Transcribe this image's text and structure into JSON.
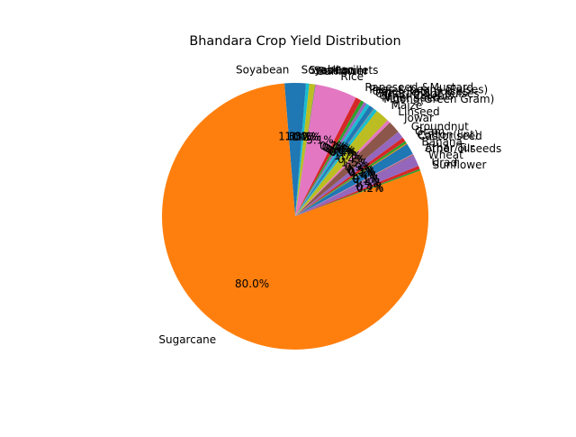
{
  "chart_data": {
    "type": "pie",
    "title": "Bhandara Crop Yield Distribution",
    "start_angle_deg": 90,
    "direction": "counterclockwise",
    "slices": [
      {
        "label": "Soyabean",
        "value": 1.3,
        "pct_label": "1.3%",
        "color": "#1f77b4"
      },
      {
        "label": "Sugarcane",
        "value": 80.0,
        "pct_label": "80.0%",
        "color": "#ff7f0e"
      },
      {
        "label": "Sunflower",
        "value": 0.2,
        "pct_label": "0.2%",
        "color": "#2ca02c"
      },
      {
        "label": "Urad",
        "value": 0.4,
        "pct_label": "0.4%",
        "color": "#d62728"
      },
      {
        "label": "Wheat",
        "value": 1.4,
        "pct_label": "1.4%",
        "color": "#9467bd"
      },
      {
        "label": "other oilseeds",
        "value": 0.1,
        "pct_label": "0.1%",
        "color": "#8c564b"
      },
      {
        "label": "Arhar/Tur",
        "value": 0.1,
        "pct_label": "0.1%",
        "color": "#e377c2"
      },
      {
        "label": "Banana",
        "value": 1.4,
        "pct_label": "1.4%",
        "color": "#1f77b4"
      },
      {
        "label": "Castor seed",
        "value": 0.1,
        "pct_label": "0.1%",
        "color": "#ff7f0e"
      },
      {
        "label": "Cotton(lint)",
        "value": 0.3,
        "pct_label": "0.3%",
        "color": "#2ca02c"
      },
      {
        "label": "Gram",
        "value": 0.5,
        "pct_label": "0.5%",
        "color": "#d62728"
      },
      {
        "label": "Groundnut",
        "value": 0.9,
        "pct_label": "0.9%",
        "color": "#9467bd"
      },
      {
        "label": "Jowar",
        "value": 1.5,
        "pct_label": "1.5%",
        "color": "#8c564b"
      },
      {
        "label": "Linseed",
        "value": 0.4,
        "pct_label": "0.4%",
        "color": "#e377c2"
      },
      {
        "label": "Maize",
        "value": 1.7,
        "pct_label": "1.7%",
        "color": "#bcbd22"
      },
      {
        "label": "Moong(Green Gram)",
        "value": 0.4,
        "pct_label": "0.4%",
        "color": "#17becf"
      },
      {
        "label": "Niger seed",
        "value": 0.1,
        "pct_label": "0.1%",
        "color": "#7f7f7f"
      },
      {
        "label": "Other Cereals",
        "value": 0.6,
        "pct_label": "0.6%",
        "color": "#1f77b4"
      },
      {
        "label": "Other Kharif pulses",
        "value": 0.4,
        "pct_label": "0.4%",
        "color": "#17becf"
      },
      {
        "label": "Other Rabi pulses",
        "value": 0.4,
        "pct_label": "0.4%",
        "color": "#9467bd"
      },
      {
        "label": "Peas & beans (Pulses)",
        "value": 0.4,
        "pct_label": "0.4%",
        "color": "#2ca02c"
      },
      {
        "label": "Rapeseed &Mustard",
        "value": 0.7,
        "pct_label": "0.7%",
        "color": "#d62728"
      },
      {
        "label": "Rice",
        "value": 5.1,
        "pct_label": "5.1%",
        "color": "#e377c2"
      },
      {
        "label": "Safflower",
        "value": 0.1,
        "pct_label": "0.1%",
        "color": "#7f7f7f"
      },
      {
        "label": "Sesamum",
        "value": 0.7,
        "pct_label": "0.7%",
        "color": "#bcbd22"
      },
      {
        "label": "Small millets",
        "value": 0.4,
        "pct_label": "0.4%",
        "color": "#17becf"
      },
      {
        "label": "Soyabean",
        "value": 1.3,
        "pct_label": "1.3%",
        "color": "#1f77b4"
      }
    ]
  }
}
